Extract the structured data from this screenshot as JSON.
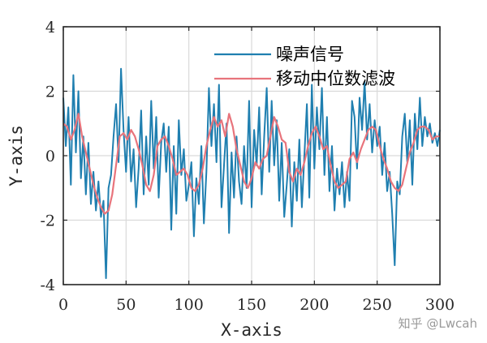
{
  "chart_data": {
    "type": "line",
    "xlabel": "X-axis",
    "ylabel": "Y-axis",
    "xlim": [
      0,
      300
    ],
    "ylim": [
      -4,
      4
    ],
    "xticks": [
      0,
      50,
      100,
      150,
      200,
      250,
      300
    ],
    "yticks": [
      -4,
      -2,
      0,
      2,
      4
    ],
    "grid": true,
    "legend_position": "top-right",
    "series": [
      {
        "name": "噪声信号",
        "color": "#1f7fb0",
        "sample_step": 2,
        "x": [
          0,
          2,
          4,
          6,
          8,
          10,
          12,
          14,
          16,
          18,
          20,
          22,
          24,
          26,
          28,
          30,
          32,
          34,
          36,
          38,
          40,
          42,
          44,
          46,
          48,
          50,
          52,
          54,
          56,
          58,
          60,
          62,
          64,
          66,
          68,
          70,
          72,
          74,
          76,
          78,
          80,
          82,
          84,
          86,
          88,
          90,
          92,
          94,
          96,
          98,
          100,
          102,
          104,
          106,
          108,
          110,
          112,
          114,
          116,
          118,
          120,
          122,
          124,
          126,
          128,
          130,
          132,
          134,
          136,
          138,
          140,
          142,
          144,
          146,
          148,
          150,
          152,
          154,
          156,
          158,
          160,
          162,
          164,
          166,
          168,
          170,
          172,
          174,
          176,
          178,
          180,
          182,
          184,
          186,
          188,
          190,
          192,
          194,
          196,
          198,
          200,
          202,
          204,
          206,
          208,
          210,
          212,
          214,
          216,
          218,
          220,
          222,
          224,
          226,
          228,
          230,
          232,
          234,
          236,
          238,
          240,
          242,
          244,
          246,
          248,
          250,
          252,
          254,
          256,
          258,
          260,
          262,
          264,
          266,
          268,
          270,
          272,
          274,
          276,
          278,
          280,
          282,
          284,
          286,
          288,
          290,
          292,
          294,
          296,
          298,
          300
        ],
        "values": [
          1.8,
          0.3,
          1.5,
          -0.9,
          2.5,
          0.1,
          2.0,
          -0.7,
          0.6,
          -1.2,
          0.4,
          -1.5,
          -0.5,
          -1.7,
          -0.8,
          -1.9,
          -1.4,
          -3.8,
          -1.0,
          -0.6,
          0.6,
          1.6,
          -0.2,
          2.7,
          0.8,
          -0.5,
          1.2,
          -0.8,
          0.2,
          -1.6,
          -0.4,
          1.4,
          -1.2,
          0.6,
          -0.9,
          1.7,
          -0.4,
          1.2,
          -1.3,
          0.4,
          1.0,
          -0.5,
          0.9,
          -2.3,
          0.3,
          -1.8,
          1.1,
          -0.6,
          0.2,
          -1.4,
          -0.9,
          -0.2,
          -2.5,
          -0.7,
          -1.5,
          0.3,
          -2.1,
          -0.5,
          2.1,
          0.3,
          1.6,
          -0.2,
          2.2,
          -1.6,
          -0.3,
          1.0,
          -2.4,
          0.1,
          -1.3,
          0.6,
          -0.8,
          -1.5,
          0.3,
          -1.0,
          1.7,
          -1.6,
          0.8,
          -0.3,
          1.5,
          -1.2,
          0.6,
          2.1,
          -0.5,
          1.7,
          -0.3,
          1.1,
          -1.4,
          0.4,
          -1.9,
          -0.9,
          0.2,
          -2.2,
          -0.2,
          -1.4,
          0.5,
          -1.6,
          0.0,
          1.6,
          -1.3,
          2.2,
          -0.4,
          1.5,
          0.2,
          2.1,
          -0.6,
          1.2,
          -1.1,
          0.3,
          -1.7,
          -0.4,
          -1.2,
          -0.2,
          -1.6,
          -0.5,
          -1.4,
          1.7,
          1.2,
          -0.4,
          1.8,
          0.8,
          2.3,
          0.5,
          1.6,
          0.1,
          1.1,
          0.3,
          0.9,
          -0.6,
          0.4,
          -1.1,
          -0.5,
          -1.8,
          -3.4,
          -0.8,
          -1.2,
          0.6,
          1.3,
          -0.2,
          1.1,
          -0.9,
          1.3,
          0.2,
          1.8,
          0.3,
          1.2,
          0.6,
          1.0,
          0.4,
          0.7,
          0.3,
          0.8
        ]
      },
      {
        "name": "移动中位数滤波",
        "color": "#e8747c",
        "sample_step": 3,
        "x": [
          0,
          3,
          6,
          9,
          12,
          15,
          18,
          21,
          24,
          27,
          30,
          33,
          36,
          39,
          42,
          45,
          48,
          51,
          54,
          57,
          60,
          63,
          66,
          69,
          72,
          75,
          78,
          81,
          84,
          87,
          90,
          93,
          96,
          99,
          102,
          105,
          108,
          111,
          114,
          117,
          120,
          123,
          126,
          129,
          132,
          135,
          138,
          141,
          144,
          147,
          150,
          153,
          156,
          159,
          162,
          165,
          168,
          171,
          174,
          177,
          180,
          183,
          186,
          189,
          192,
          195,
          198,
          201,
          204,
          207,
          210,
          213,
          216,
          219,
          222,
          225,
          228,
          231,
          234,
          237,
          240,
          243,
          246,
          249,
          252,
          255,
          258,
          261,
          264,
          267,
          270,
          273,
          276,
          279,
          282,
          285,
          288,
          291,
          294,
          297,
          300
        ],
        "values": [
          1.0,
          0.9,
          0.5,
          0.8,
          1.3,
          0.6,
          0.1,
          -0.4,
          -0.9,
          -1.3,
          -1.6,
          -1.8,
          -1.7,
          -1.2,
          -0.3,
          0.6,
          0.7,
          0.5,
          0.8,
          0.6,
          0.2,
          -0.3,
          -0.9,
          -1.1,
          -0.6,
          0.3,
          0.5,
          0.6,
          0.3,
          -0.1,
          -0.6,
          -0.5,
          -0.4,
          -0.6,
          -1.0,
          -1.1,
          -0.9,
          -0.4,
          0.3,
          0.8,
          1.2,
          0.9,
          1.1,
          0.6,
          1.3,
          0.9,
          0.2,
          -0.3,
          -0.8,
          -1.0,
          -0.7,
          -0.2,
          -0.4,
          -0.1,
          0.0,
          0.6,
          1.2,
          0.9,
          0.5,
          0.4,
          -0.5,
          -0.8,
          -0.4,
          -0.6,
          -0.2,
          0.3,
          0.7,
          0.9,
          0.6,
          0.2,
          0.3,
          -0.3,
          -0.8,
          -1.0,
          -0.9,
          -0.8,
          -0.1,
          0.1,
          -0.2,
          0.2,
          0.5,
          0.8,
          0.9,
          0.8,
          0.3,
          -0.1,
          -0.4,
          -0.8,
          -1.0,
          -1.1,
          -0.9,
          -0.4,
          0.1,
          0.4,
          0.8,
          0.9,
          0.9,
          0.8,
          0.5,
          0.6,
          0.6
        ]
      }
    ]
  },
  "watermark": "知乎 @Lwcah"
}
